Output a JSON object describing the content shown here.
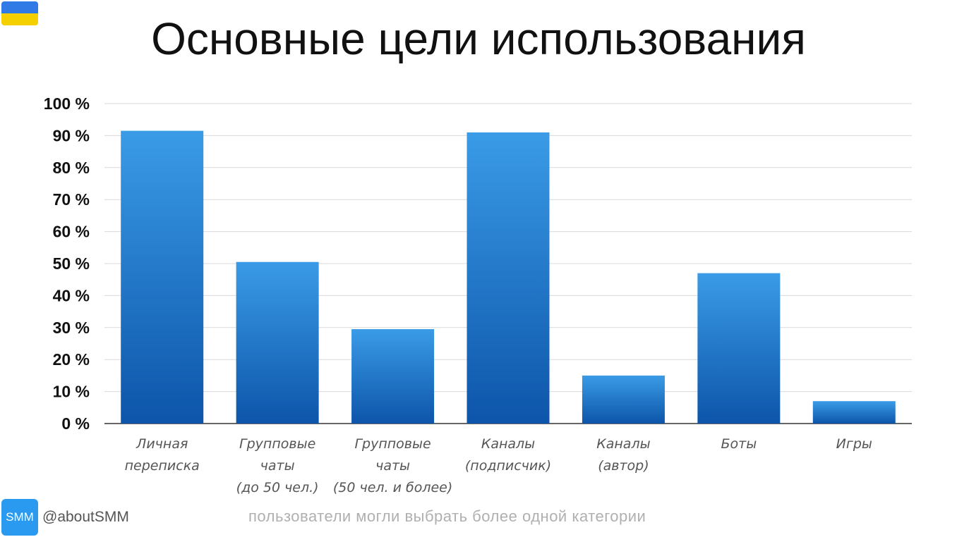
{
  "header": {
    "title": "Основные цели использования"
  },
  "footer": {
    "logo_text": "SMM",
    "handle": "@aboutSMM",
    "note": "пользователи могли выбрать более одной категории"
  },
  "colors": {
    "bar_top": "#3a9be6",
    "bar_bottom": "#0d55aa",
    "grid": "#d9d9d9",
    "axis": "#333333",
    "flag_blue": "#2f7ae5",
    "flag_yellow": "#f5d000",
    "logo_bg": "#2a9af0"
  },
  "chart_data": {
    "type": "bar",
    "title": "Основные цели использования",
    "xlabel": "",
    "ylabel": "",
    "ylim": [
      0,
      100
    ],
    "yticks": [
      "0 %",
      "10 %",
      "20 %",
      "30 %",
      "40 %",
      "50 %",
      "60 %",
      "70 %",
      "80 %",
      "90 %",
      "100 %"
    ],
    "grid": true,
    "categories": [
      [
        "Личная",
        "переписка"
      ],
      [
        "Групповые",
        "чаты",
        "(до 50 чел.)"
      ],
      [
        "Групповые",
        "чаты",
        "(50 чел. и более)"
      ],
      [
        "Каналы",
        "(подписчик)"
      ],
      [
        "Каналы",
        "(автор)"
      ],
      [
        "Боты"
      ],
      [
        "Игры"
      ]
    ],
    "values": [
      91.5,
      50.5,
      29.5,
      91,
      15,
      47,
      7
    ]
  }
}
